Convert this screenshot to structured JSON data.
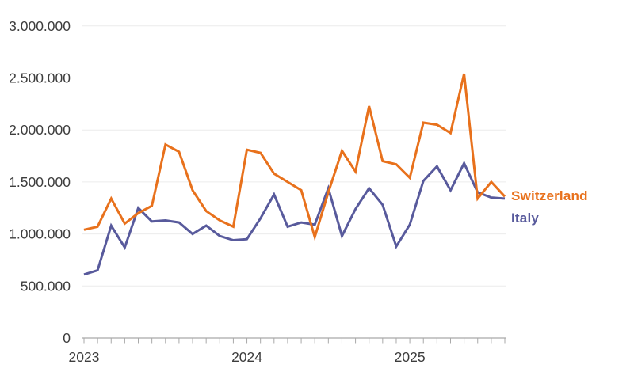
{
  "chart_data": {
    "type": "line",
    "title": "",
    "xlabel": "",
    "ylabel": "",
    "grid": "horizontal",
    "ylim": [
      0,
      3000000
    ],
    "x": [
      "2023-01",
      "2023-02",
      "2023-03",
      "2023-04",
      "2023-05",
      "2023-06",
      "2023-07",
      "2023-08",
      "2023-09",
      "2023-10",
      "2023-11",
      "2023-12",
      "2024-01",
      "2024-02",
      "2024-03",
      "2024-04",
      "2024-05",
      "2024-06",
      "2024-07",
      "2024-08",
      "2024-09",
      "2024-10",
      "2024-11",
      "2024-12",
      "2025-01",
      "2025-02",
      "2025-03",
      "2025-04",
      "2025-05",
      "2025-06",
      "2025-07",
      "2025-08"
    ],
    "series": [
      {
        "name": "Italy",
        "color": "#585a9c",
        "values": [
          610000,
          650000,
          1080000,
          870000,
          1250000,
          1120000,
          1130000,
          1110000,
          1000000,
          1080000,
          980000,
          940000,
          950000,
          1150000,
          1380000,
          1070000,
          1110000,
          1090000,
          1440000,
          980000,
          1240000,
          1440000,
          1280000,
          880000,
          1090000,
          1510000,
          1650000,
          1420000,
          1680000,
          1400000,
          1350000,
          1340000
        ]
      },
      {
        "name": "Switzerland",
        "color": "#e8711c",
        "values": [
          1040000,
          1070000,
          1340000,
          1100000,
          1200000,
          1270000,
          1860000,
          1790000,
          1420000,
          1220000,
          1130000,
          1070000,
          1810000,
          1780000,
          1580000,
          1500000,
          1420000,
          970000,
          1400000,
          1800000,
          1600000,
          2230000,
          1700000,
          1670000,
          1540000,
          2070000,
          2050000,
          1970000,
          2540000,
          1340000,
          1500000,
          1360000
        ]
      }
    ],
    "y_ticks": [
      {
        "label": "0",
        "value": 0
      },
      {
        "label": "500.000",
        "value": 500000
      },
      {
        "label": "1.000.000",
        "value": 1000000
      },
      {
        "label": "1.500.000",
        "value": 1500000
      },
      {
        "label": "2.000.000",
        "value": 2000000
      },
      {
        "label": "2.500.000",
        "value": 2500000
      },
      {
        "label": "3.000.000",
        "value": 3000000
      }
    ],
    "x_year_labels": [
      {
        "label": "2023",
        "month_index": 0
      },
      {
        "label": "2024",
        "month_index": 12
      },
      {
        "label": "2025",
        "month_index": 24
      }
    ],
    "legend_position": "right-of-line-end"
  },
  "colors": {
    "switzerland_line": "#e8711c",
    "italy_line": "#585a9c",
    "axis": "#a9a9a9",
    "gridline": "#ececec",
    "tick_text": "#3d3d3d"
  }
}
